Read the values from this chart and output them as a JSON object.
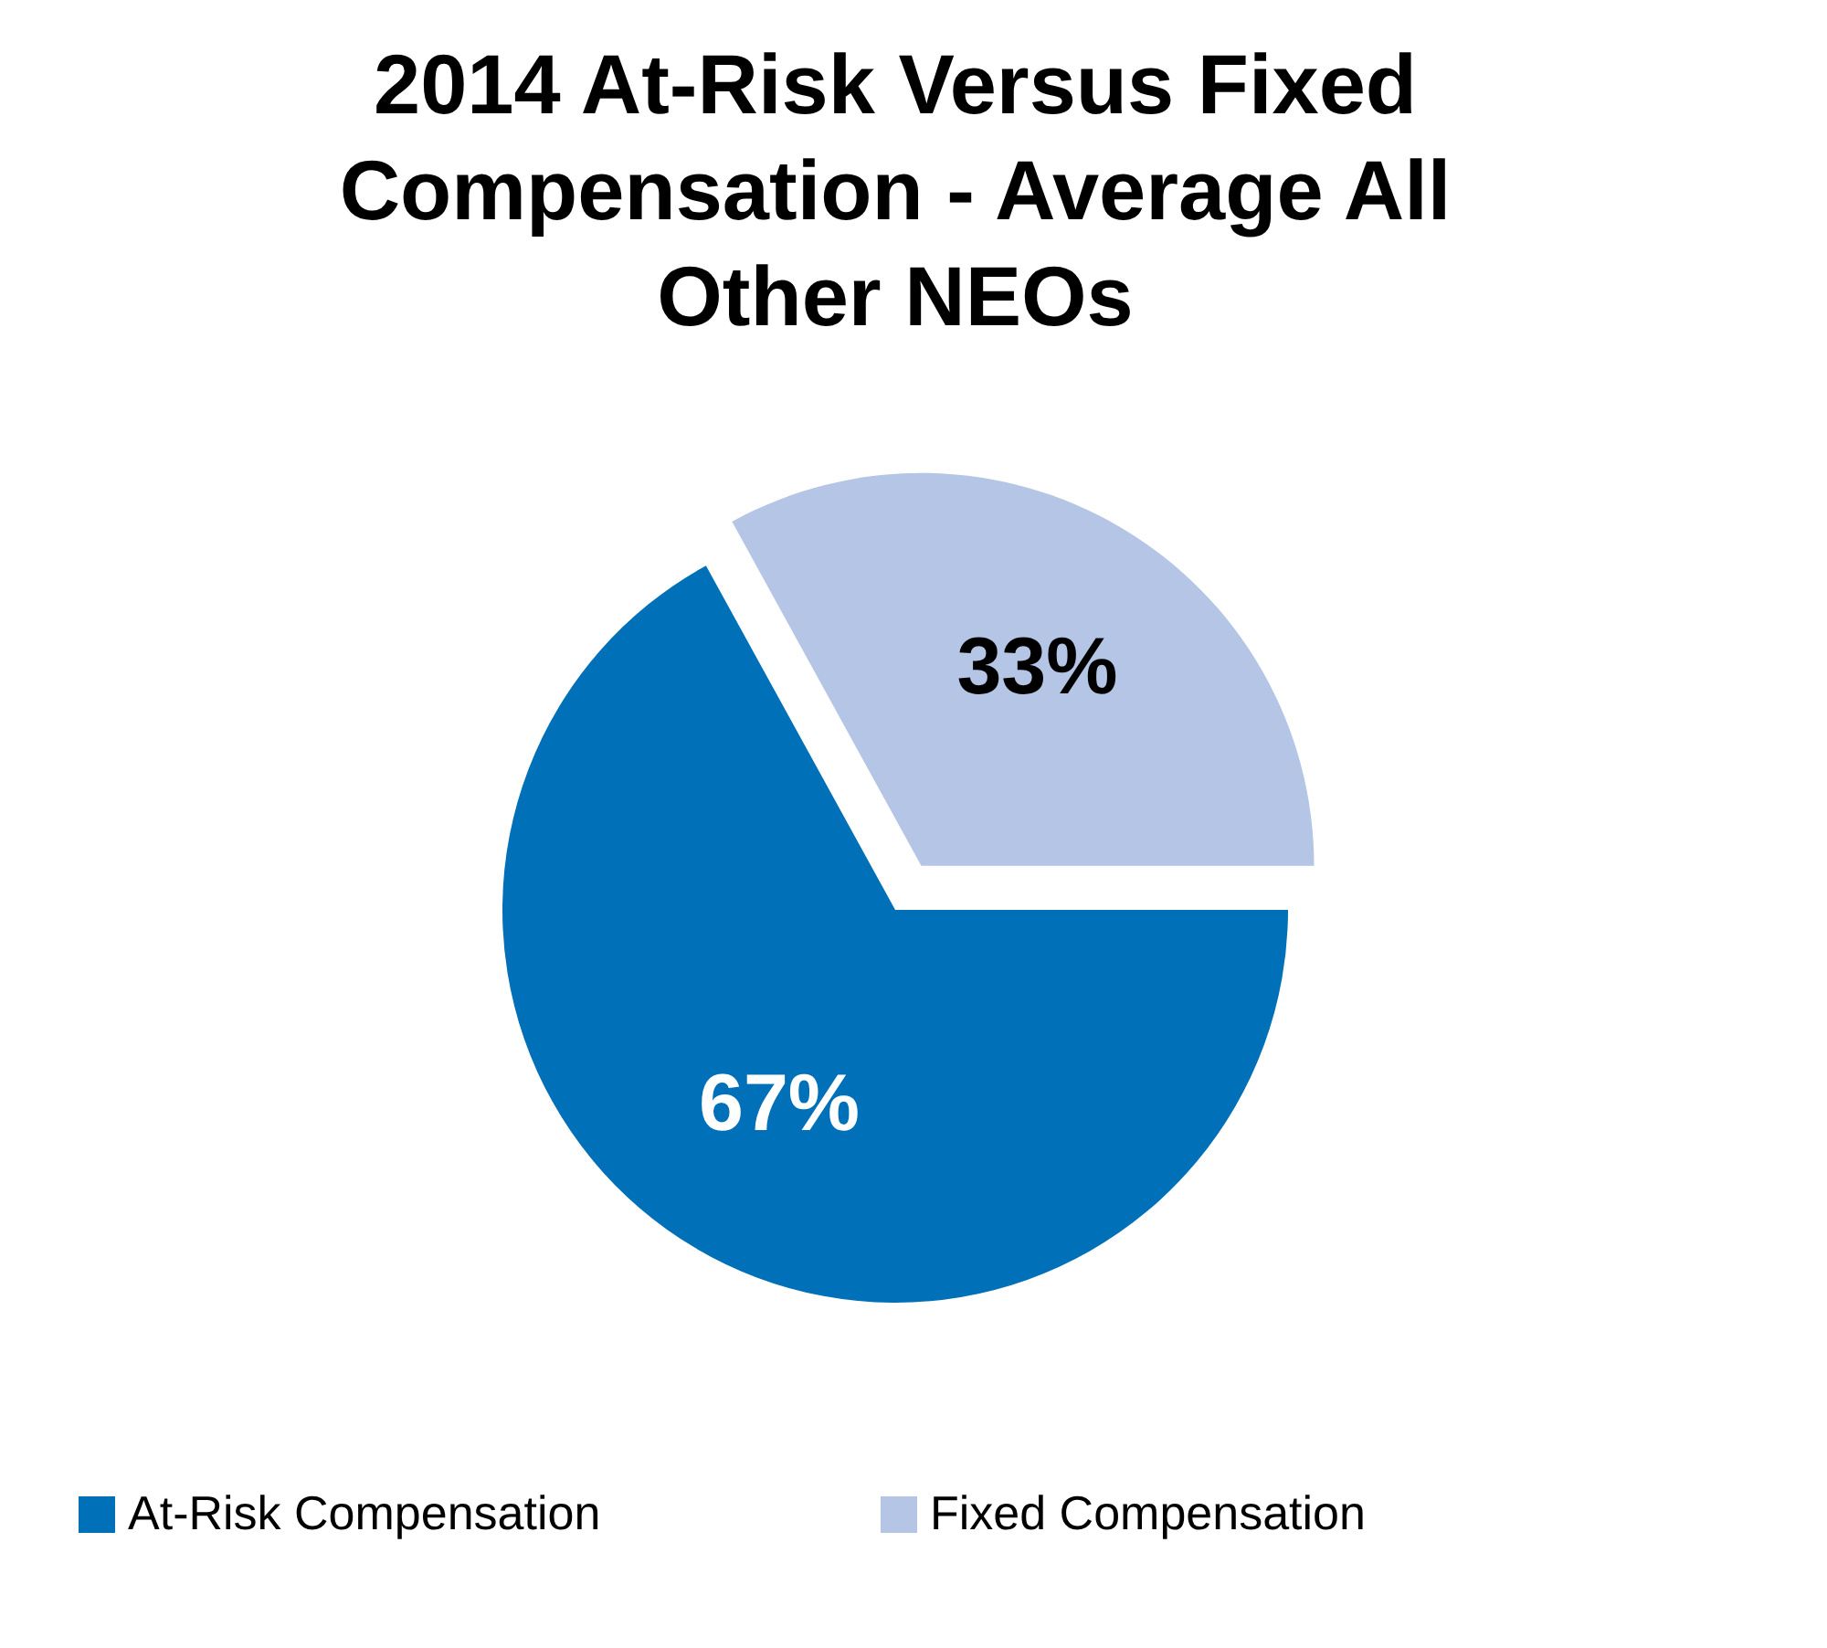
{
  "chart_data": {
    "type": "pie",
    "title": "2014 At-Risk Versus Fixed Compensation - Average All Other NEOs",
    "categories": [
      "At-Risk Compensation",
      "Fixed Compensation"
    ],
    "values": [
      67,
      33
    ],
    "colors": [
      "#0070b8",
      "#b4c5e6"
    ],
    "value_labels": [
      "67%",
      "33%"
    ],
    "legend": "bottom"
  }
}
